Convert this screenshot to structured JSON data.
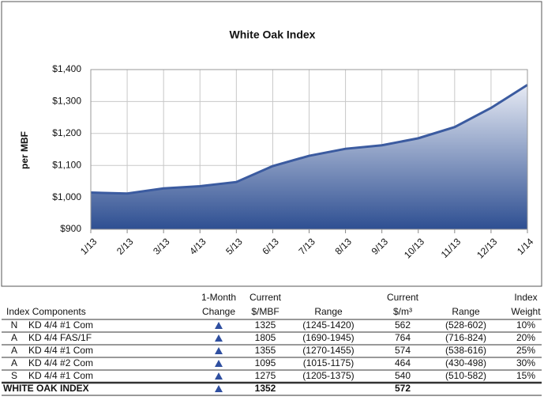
{
  "chart_data": {
    "type": "area",
    "title": "White Oak Index",
    "ylabel": "per MBF",
    "categories": [
      "1/13",
      "2/13",
      "3/13",
      "4/13",
      "5/13",
      "6/13",
      "7/13",
      "8/13",
      "9/13",
      "10/13",
      "11/13",
      "12/13",
      "1/14"
    ],
    "values": [
      1015,
      1012,
      1028,
      1035,
      1048,
      1098,
      1130,
      1152,
      1163,
      1185,
      1220,
      1280,
      1352
    ],
    "color": "#3b5ba0",
    "ylim": [
      900,
      1400
    ],
    "yticks": [
      {
        "value": 900,
        "label": "$900"
      },
      {
        "value": 1000,
        "label": "$1,000"
      },
      {
        "value": 1100,
        "label": "$1,100"
      },
      {
        "value": 1200,
        "label": "$1,200"
      },
      {
        "value": 1300,
        "label": "$1,300"
      },
      {
        "value": 1400,
        "label": "$1,400"
      }
    ],
    "grid": true
  },
  "table": {
    "header": {
      "name": {
        "bottom": "Index Components"
      },
      "change": {
        "top": "1-Month",
        "bottom": "Change"
      },
      "current": {
        "top": "Current",
        "bottom": "$/MBF"
      },
      "range": {
        "bottom": "Range"
      },
      "m3": {
        "top": "Current",
        "bottom": "$/m³"
      },
      "range_m3": {
        "bottom": "Range"
      },
      "weight": {
        "top": "Index",
        "bottom": "Weight"
      }
    },
    "rows": [
      {
        "grade": "N",
        "name": "KD  4/4 #1 Com",
        "current": 1325,
        "range": "(1245-1420)",
        "m3": 562,
        "range_m3": "(528-602)",
        "weight": "10%"
      },
      {
        "grade": "A",
        "name": "KD  4/4 FAS/1F",
        "current": 1805,
        "range": "(1690-1945)",
        "m3": 764,
        "range_m3": "(716-824)",
        "weight": "20%"
      },
      {
        "grade": "A",
        "name": "KD  4/4 #1 Com",
        "current": 1355,
        "range": "(1270-1455)",
        "m3": 574,
        "range_m3": "(538-616)",
        "weight": "25%"
      },
      {
        "grade": "A",
        "name": "KD  4/4 #2 Com",
        "current": 1095,
        "range": "(1015-1175)",
        "m3": 464,
        "range_m3": "(430-498)",
        "weight": "30%"
      },
      {
        "grade": "S",
        "name": "KD  4/4 #1 Com",
        "current": 1275,
        "range": "(1205-1375)",
        "m3": 540,
        "range_m3": "(510-582)",
        "weight": "15%"
      },
      {
        "name": "WHITE OAK INDEX",
        "current": 1352,
        "m3": 572
      }
    ]
  }
}
